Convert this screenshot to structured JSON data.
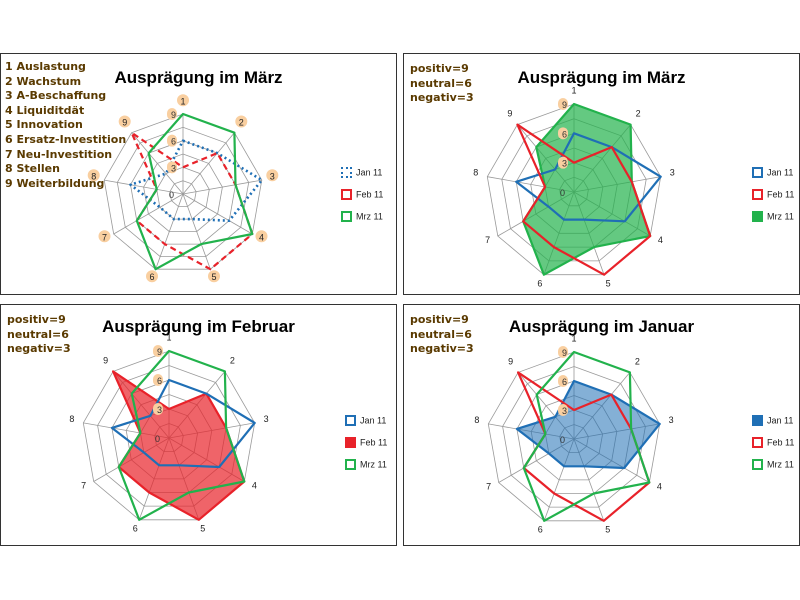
{
  "colors": {
    "jan": "#1f6fb5",
    "feb": "#e8222a",
    "mrz": "#22b24c",
    "grid": "#9a9a9a",
    "badge": "#f9cfa0"
  },
  "categories_legend": [
    "1 Auslastung",
    "2 Wachstum",
    "3 A-Beschaffung",
    "4 Liquiditdät",
    "5 Innovation",
    "6 Ersatz-Investition",
    "7 Neu-Investition",
    "8 Stellen",
    "9 Weiterbildung"
  ],
  "scale_info": [
    "positiv=9",
    "neutral=6",
    "negativ=3"
  ],
  "chart_data": [
    {
      "type": "radar",
      "title": "Ausprägung im März",
      "categories": [
        "1",
        "2",
        "3",
        "4",
        "5",
        "6",
        "7",
        "8",
        "9"
      ],
      "rlim": [
        0,
        9
      ],
      "rticks": [
        0,
        3,
        6,
        9
      ],
      "legend_position": "right",
      "filled_series": null,
      "series": [
        {
          "name": "Jan 11",
          "values": [
            6,
            6,
            9,
            6,
            3,
            3,
            3,
            6,
            3
          ],
          "style": "dotted"
        },
        {
          "name": "Feb 11",
          "values": [
            3,
            6,
            6,
            9,
            9,
            6,
            6,
            3,
            9
          ],
          "style": "dashed"
        },
        {
          "name": "Mrz 11",
          "values": [
            9,
            9,
            6,
            9,
            6,
            9,
            6,
            3,
            6
          ],
          "style": "solid"
        }
      ]
    },
    {
      "type": "radar",
      "title": "Ausprägung im März",
      "categories": [
        "1",
        "2",
        "3",
        "4",
        "5",
        "6",
        "7",
        "8",
        "9"
      ],
      "rlim": [
        0,
        9
      ],
      "rticks": [
        0,
        3,
        6,
        9
      ],
      "legend_position": "right",
      "filled_series": "Mrz 11",
      "series": [
        {
          "name": "Jan 11",
          "values": [
            6,
            6,
            9,
            6,
            3,
            3,
            3,
            6,
            3
          ],
          "style": "solid"
        },
        {
          "name": "Feb 11",
          "values": [
            3,
            6,
            6,
            9,
            9,
            6,
            6,
            3,
            9
          ],
          "style": "solid"
        },
        {
          "name": "Mrz 11",
          "values": [
            9,
            9,
            6,
            9,
            6,
            9,
            6,
            3,
            6
          ],
          "style": "solid"
        }
      ]
    },
    {
      "type": "radar",
      "title": "Ausprägung im Februar",
      "categories": [
        "1",
        "2",
        "3",
        "4",
        "5",
        "6",
        "7",
        "8",
        "9"
      ],
      "rlim": [
        0,
        9
      ],
      "rticks": [
        0,
        3,
        6,
        9
      ],
      "legend_position": "right",
      "filled_series": "Feb 11",
      "series": [
        {
          "name": "Jan 11",
          "values": [
            6,
            6,
            9,
            6,
            3,
            3,
            3,
            6,
            3
          ],
          "style": "solid"
        },
        {
          "name": "Feb 11",
          "values": [
            3,
            6,
            6,
            9,
            9,
            6,
            6,
            3,
            9
          ],
          "style": "solid"
        },
        {
          "name": "Mrz 11",
          "values": [
            9,
            9,
            6,
            9,
            6,
            9,
            6,
            3,
            6
          ],
          "style": "solid"
        }
      ]
    },
    {
      "type": "radar",
      "title": "Ausprägung im Januar",
      "categories": [
        "1",
        "2",
        "3",
        "4",
        "5",
        "6",
        "7",
        "8",
        "9"
      ],
      "rlim": [
        0,
        9
      ],
      "rticks": [
        0,
        3,
        6,
        9
      ],
      "legend_position": "right",
      "filled_series": "Jan 11",
      "series": [
        {
          "name": "Jan 11",
          "values": [
            6,
            6,
            9,
            6,
            3,
            3,
            3,
            6,
            3
          ],
          "style": "solid"
        },
        {
          "name": "Feb 11",
          "values": [
            3,
            6,
            6,
            9,
            9,
            6,
            6,
            3,
            9
          ],
          "style": "solid"
        },
        {
          "name": "Mrz 11",
          "values": [
            9,
            9,
            6,
            9,
            6,
            9,
            6,
            3,
            6
          ],
          "style": "solid"
        }
      ]
    }
  ]
}
